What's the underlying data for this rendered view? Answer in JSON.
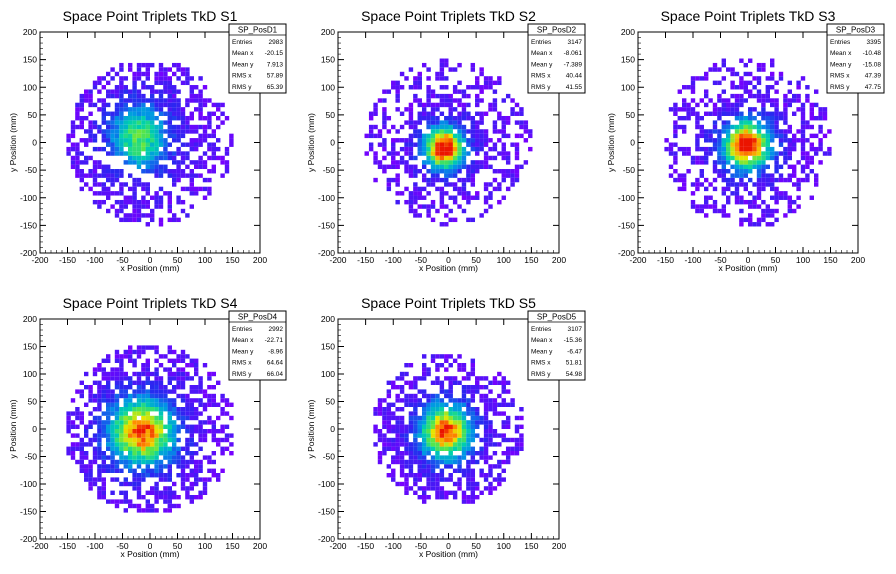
{
  "chart_data": [
    {
      "type": "heatmap",
      "title": "Space Point Triplets TkD S1",
      "xlabel": "x Position (mm)",
      "ylabel": "y Position (mm)",
      "xlim": [
        -200,
        200
      ],
      "ylim": [
        -200,
        200
      ],
      "x_ticks": [
        "-200",
        "-150",
        "-100",
        "-50",
        "0",
        "50",
        "100",
        "150",
        "200"
      ],
      "y_ticks": [
        "-200",
        "-150",
        "-100",
        "-50",
        "0",
        "50",
        "100",
        "150",
        "200"
      ],
      "stats": {
        "name": "SP_PosD1",
        "rows": [
          [
            "Entries",
            "2983"
          ],
          [
            "Mean x",
            "-20.15"
          ],
          [
            "Mean y",
            "7.913"
          ],
          [
            "RMS x",
            "57.89"
          ],
          [
            "RMS y",
            "65.39"
          ]
        ]
      },
      "distribution": {
        "center_x": -20,
        "center_y": 8,
        "sigma_x": 58,
        "sigma_y": 65,
        "radius": 150,
        "peak_level": 0.62,
        "gap_band": true
      }
    },
    {
      "type": "heatmap",
      "title": "Space Point Triplets TkD S2",
      "xlabel": "x Position (mm)",
      "ylabel": "y Position (mm)",
      "xlim": [
        -200,
        200
      ],
      "ylim": [
        -200,
        200
      ],
      "x_ticks": [
        "-200",
        "-150",
        "-100",
        "-50",
        "0",
        "50",
        "100",
        "150",
        "200"
      ],
      "y_ticks": [
        "-200",
        "-150",
        "-100",
        "-50",
        "0",
        "50",
        "100",
        "150",
        "200"
      ],
      "stats": {
        "name": "SP_PosD2",
        "rows": [
          [
            "Entries",
            "3147"
          ],
          [
            "Mean x",
            "-8.061"
          ],
          [
            "Mean y",
            "-7.389"
          ],
          [
            "RMS x",
            "40.44"
          ],
          [
            "RMS y",
            "41.55"
          ]
        ]
      },
      "distribution": {
        "center_x": -8,
        "center_y": -10,
        "sigma_x": 40,
        "sigma_y": 42,
        "radius": 150,
        "peak_level": 1.0,
        "gap_band": false
      }
    },
    {
      "type": "heatmap",
      "title": "Space Point Triplets TkD S3",
      "xlabel": "x Position (mm)",
      "ylabel": "y Position (mm)",
      "xlim": [
        -200,
        200
      ],
      "ylim": [
        -200,
        200
      ],
      "x_ticks": [
        "-200",
        "-150",
        "-100",
        "-50",
        "0",
        "50",
        "100",
        "150",
        "200"
      ],
      "y_ticks": [
        "-200",
        "-150",
        "-100",
        "-50",
        "0",
        "50",
        "100",
        "150",
        "200"
      ],
      "stats": {
        "name": "SP_PosD3",
        "rows": [
          [
            "Entries",
            "3395"
          ],
          [
            "Mean x",
            "-10.48"
          ],
          [
            "Mean y",
            "-15.08"
          ],
          [
            "RMS x",
            "47.39"
          ],
          [
            "RMS y",
            "47.75"
          ]
        ]
      },
      "distribution": {
        "center_x": -2,
        "center_y": -5,
        "sigma_x": 47,
        "sigma_y": 48,
        "radius": 155,
        "peak_level": 1.0,
        "gap_band": false
      }
    },
    {
      "type": "heatmap",
      "title": "Space Point Triplets TkD S4",
      "xlabel": "x Position (mm)",
      "ylabel": "y Position (mm)",
      "xlim": [
        -200,
        200
      ],
      "ylim": [
        -200,
        200
      ],
      "x_ticks": [
        "-200",
        "-150",
        "-100",
        "-50",
        "0",
        "50",
        "100",
        "150",
        "200"
      ],
      "y_ticks": [
        "-200",
        "-150",
        "-100",
        "-50",
        "0",
        "50",
        "100",
        "150",
        "200"
      ],
      "stats": {
        "name": "SP_PosD4",
        "rows": [
          [
            "Entries",
            "2992"
          ],
          [
            "Mean x",
            "-22.71"
          ],
          [
            "Mean y",
            "-8.96"
          ],
          [
            "RMS x",
            "64.64"
          ],
          [
            "RMS y",
            "66.04"
          ]
        ]
      },
      "distribution": {
        "center_x": -15,
        "center_y": -5,
        "sigma_x": 65,
        "sigma_y": 66,
        "radius": 155,
        "peak_level": 0.9,
        "gap_band": false
      }
    },
    {
      "type": "heatmap",
      "title": "Space Point Triplets TkD S5",
      "xlabel": "x Position (mm)",
      "ylabel": "y Position (mm)",
      "xlim": [
        -200,
        200
      ],
      "ylim": [
        -200,
        200
      ],
      "x_ticks": [
        "-200",
        "-150",
        "-100",
        "-50",
        "0",
        "50",
        "100",
        "150",
        "200"
      ],
      "y_ticks": [
        "-200",
        "-150",
        "-100",
        "-50",
        "0",
        "50",
        "100",
        "150",
        "200"
      ],
      "stats": {
        "name": "SP_PosD5",
        "rows": [
          [
            "Entries",
            "3107"
          ],
          [
            "Mean x",
            "-15.36"
          ],
          [
            "Mean y",
            "-6.47"
          ],
          [
            "RMS x",
            "51.81"
          ],
          [
            "RMS y",
            "54.98"
          ]
        ]
      },
      "distribution": {
        "center_x": -5,
        "center_y": -5,
        "sigma_x": 52,
        "sigma_y": 55,
        "radius": 140,
        "peak_level": 0.9,
        "gap_band": false
      }
    }
  ]
}
